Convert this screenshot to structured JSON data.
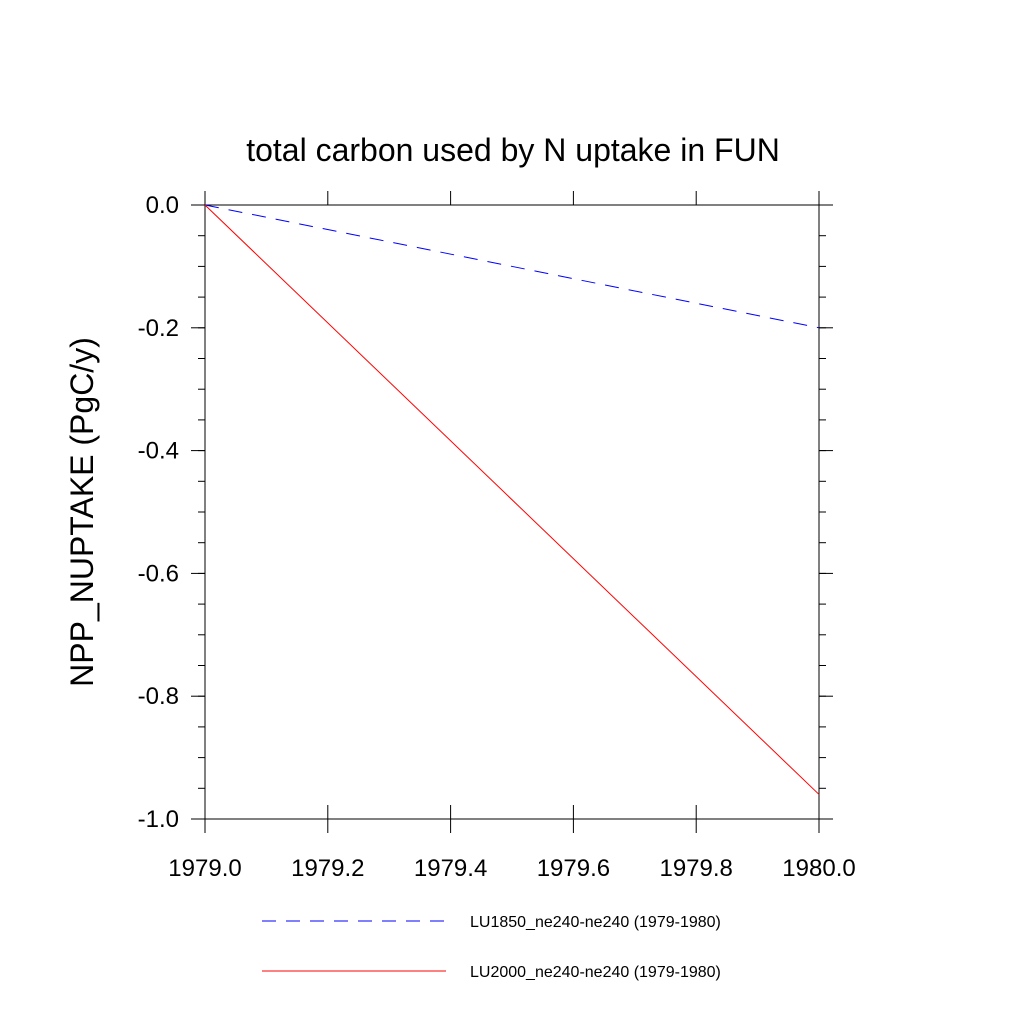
{
  "chart_data": {
    "type": "line",
    "title": "total carbon used by N uptake in FUN",
    "xlabel": "",
    "ylabel": "NPP_NUPTAKE  (PgC/y)",
    "xlim": [
      1979.0,
      1980.0
    ],
    "ylim": [
      -1.0,
      0.0
    ],
    "x_ticks": [
      1979.0,
      1979.2,
      1979.4,
      1979.6,
      1979.8,
      1980.0
    ],
    "x_tick_labels": [
      "1979.0",
      "1979.2",
      "1979.4",
      "1979.6",
      "1979.8",
      "1980.0"
    ],
    "y_ticks": [
      0.0,
      -0.2,
      -0.4,
      -0.6,
      -0.8,
      -1.0
    ],
    "y_tick_labels": [
      "0.0",
      "-0.2",
      "-0.4",
      "-0.6",
      "-0.8",
      "-1.0"
    ],
    "grid": false,
    "legend_position": "bottom",
    "series": [
      {
        "name": "LU1850_ne240-ne240 (1979-1980)",
        "x": [
          1979.0,
          1980.0
        ],
        "y": [
          0.0,
          -0.2
        ],
        "color": "#0000ff",
        "style": "dashed"
      },
      {
        "name": "LU2000_ne240-ne240 (1979-1980)",
        "x": [
          1979.0,
          1980.0
        ],
        "y": [
          0.0,
          -0.96
        ],
        "color": "#ff0000",
        "style": "solid"
      }
    ]
  }
}
